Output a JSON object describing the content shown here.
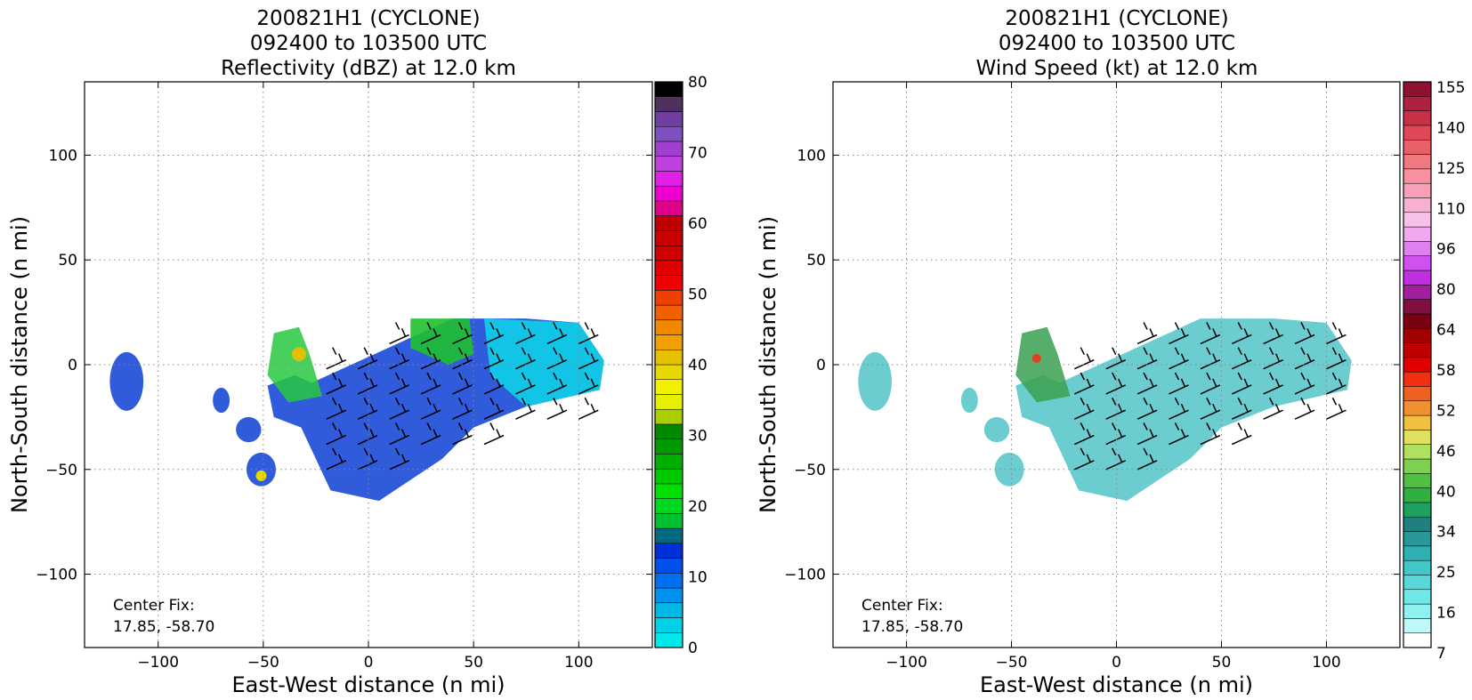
{
  "panels": [
    {
      "id": "reflectivity",
      "title_lines": [
        "200821H1 (CYCLONE)",
        "092400 to 103500 UTC",
        "Reflectivity (dBZ) at 12.0 km"
      ],
      "xlabel": "East-West distance (n mi)",
      "ylabel": "North-South distance (n mi)",
      "center_fix_lines": [
        "Center Fix:",
        "17.85, -58.70"
      ],
      "x_ticks": [
        "−100",
        "−50",
        "0",
        "50",
        "100"
      ],
      "y_ticks": [
        "100",
        "50",
        "0",
        "−50",
        "−100"
      ],
      "colorbar": {
        "labels": [
          "80",
          "70",
          "60",
          "50",
          "40",
          "30",
          "20",
          "10",
          "0"
        ],
        "colors": [
          "#00e8e8",
          "#00d0e8",
          "#00b8e8",
          "#0090ee",
          "#0070f0",
          "#0050f0",
          "#0030d8",
          "#006a80",
          "#00c030",
          "#00d820",
          "#00e000",
          "#00c800",
          "#00b000",
          "#009a00",
          "#008800",
          "#a8d000",
          "#e8f000",
          "#f0f000",
          "#e8d800",
          "#e8c000",
          "#f0a000",
          "#f08800",
          "#f06000",
          "#f04000",
          "#f00000",
          "#e00000",
          "#d00000",
          "#c80000",
          "#c00000",
          "#e0008a",
          "#f000d0",
          "#e020e8",
          "#c040e0",
          "#a040d0",
          "#8050c0",
          "#7040a0",
          "#503060",
          "#000000"
        ]
      },
      "echo_color": "#1a4ad8"
    },
    {
      "id": "windspeed",
      "title_lines": [
        "200821H1 (CYCLONE)",
        "092400 to 103500 UTC",
        "Wind Speed (kt) at 12.0 km"
      ],
      "xlabel": "East-West distance (n mi)",
      "ylabel": "North-South distance (n mi)",
      "center_fix_lines": [
        "Center Fix:",
        "17.85, -58.70"
      ],
      "x_ticks": [
        "−100",
        "−50",
        "0",
        "50",
        "100"
      ],
      "y_ticks": [
        "100",
        "50",
        "0",
        "−50",
        "−100"
      ],
      "colorbar": {
        "labels": [
          "155",
          "140",
          "125",
          "110",
          "96",
          "80",
          "64",
          "58",
          "52",
          "46",
          "40",
          "34",
          "25",
          "16",
          "7"
        ],
        "colors": [
          "#ffffff",
          "#c0f8f8",
          "#90f0f0",
          "#70e8e8",
          "#58d8d8",
          "#40c8c8",
          "#30b0b0",
          "#289898",
          "#208080",
          "#20a060",
          "#30b040",
          "#50c040",
          "#80d050",
          "#b0e060",
          "#e0e060",
          "#f0c040",
          "#f09030",
          "#f06020",
          "#f03010",
          "#e00000",
          "#c00000",
          "#a00000",
          "#780010",
          "#801040",
          "#a020a0",
          "#c030e0",
          "#d050f0",
          "#e080f0",
          "#f0a8f0",
          "#f8c0e8",
          "#f8b0d0",
          "#f8a0b8",
          "#f890a0",
          "#f07880",
          "#e86068",
          "#e04858",
          "#c83048",
          "#b02040",
          "#901030"
        ]
      },
      "echo_color": "#5cc8cc"
    }
  ],
  "chart_data": [
    {
      "type": "heatmap",
      "title": "200821H1 (CYCLONE) 092400 to 103500 UTC Reflectivity (dBZ) at 12.0 km",
      "xlabel": "East-West distance (n mi)",
      "ylabel": "North-South distance (n mi)",
      "xlim": [
        -135,
        135
      ],
      "ylim": [
        -135,
        135
      ],
      "grid": true,
      "colorbar_range": [
        0,
        80
      ],
      "center_fix": [
        17.85,
        -58.7
      ]
    },
    {
      "type": "heatmap",
      "title": "200821H1 (CYCLONE) 092400 to 103500 UTC Wind Speed (kt) at 12.0 km",
      "xlabel": "East-West distance (n mi)",
      "ylabel": "North-South distance (n mi)",
      "xlim": [
        -135,
        135
      ],
      "ylim": [
        -135,
        135
      ],
      "grid": true,
      "colorbar_levels": [
        7,
        16,
        25,
        34,
        40,
        46,
        52,
        58,
        64,
        80,
        96,
        110,
        125,
        140,
        155
      ],
      "center_fix": [
        17.85,
        -58.7
      ]
    }
  ]
}
